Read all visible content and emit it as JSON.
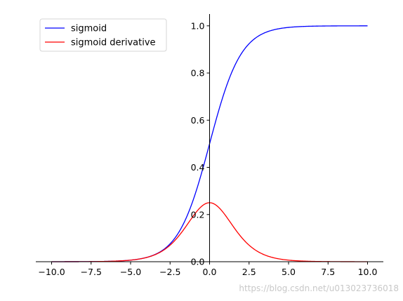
{
  "chart_data": {
    "type": "line",
    "title": "",
    "xlabel": "",
    "ylabel": "",
    "xlim": [
      -11,
      11
    ],
    "ylim": [
      0,
      1.05
    ],
    "grid": false,
    "spines": "centered-left-axis-at-x0-bottom-axis-at-y0",
    "x_ticks": [
      -10,
      -7.5,
      -5,
      -2.5,
      0,
      2.5,
      5,
      7.5,
      10
    ],
    "x_tick_labels": [
      "−10.0",
      "−7.5",
      "−5.0",
      "−2.5",
      "0.0",
      "2.5",
      "5.0",
      "7.5",
      "10.0"
    ],
    "y_ticks": [
      0,
      0.2,
      0.4,
      0.6,
      0.8,
      1.0
    ],
    "y_tick_labels": [
      "0.0",
      "0.2",
      "0.4",
      "0.6",
      "0.8",
      "1.0"
    ],
    "x_range": [
      -10,
      10
    ],
    "legend_placement": "top-left",
    "series": [
      {
        "name": "sigmoid",
        "color": "#0000ff",
        "function": "sigmoid",
        "x": [
          -10,
          -7.5,
          -5,
          -2.5,
          0,
          2.5,
          5,
          7.5,
          10
        ],
        "y": [
          4.54e-05,
          0.000553,
          0.00669,
          0.0759,
          0.5,
          0.924,
          0.993,
          0.9994,
          0.99995
        ]
      },
      {
        "name": "sigmoid derivative",
        "color": "#ff0000",
        "function": "sigmoid_derivative",
        "x": [
          -10,
          -7.5,
          -5,
          -2.5,
          0,
          2.5,
          5,
          7.5,
          10
        ],
        "y": [
          4.54e-05,
          0.000553,
          0.00665,
          0.0701,
          0.25,
          0.0701,
          0.00665,
          0.000553,
          4.54e-05
        ]
      }
    ]
  },
  "watermark": "https://blog.csdn.net/u013023736018"
}
